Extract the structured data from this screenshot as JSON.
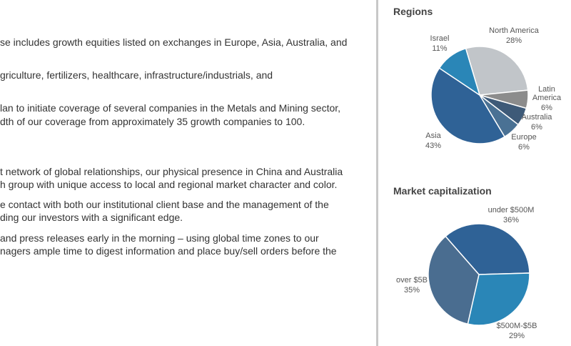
{
  "left_text": {
    "lines": [
      "se includes growth equities listed on exchanges in Europe, Asia, Australia, and",
      "griculture, fertilizers, healthcare, infrastructure/industrials, and",
      "lan to initiate coverage of several companies in the Metals and Mining sector,",
      "dth of our coverage from approximately 35 growth companies to 100.",
      "t network of global relationships, our physical presence in China and Australia",
      "h group with unique access to local and regional market character and color.",
      "e contact with both our institutional client base and the management of the",
      "ding our investors with a significant edge.",
      "and press releases early in the morning – using global time zones to our",
      "nagers ample time to digest information and place buy/sell orders before the"
    ]
  },
  "chart_data": [
    {
      "type": "pie",
      "title": "Regions",
      "slices": [
        {
          "label": "North America",
          "value": 28,
          "percent_label": "28%",
          "color": "#c1c5c9"
        },
        {
          "label": "Latin America",
          "value": 6,
          "percent_label": "6%",
          "color": "#8c8c8c"
        },
        {
          "label": "Australia",
          "value": 6,
          "percent_label": "6%",
          "color": "#3e5a78"
        },
        {
          "label": "Europe",
          "value": 6,
          "percent_label": "6%",
          "color": "#4a7194"
        },
        {
          "label": "Asia",
          "value": 43,
          "percent_label": "43%",
          "color": "#2f6296"
        },
        {
          "label": "Israel",
          "value": 11,
          "percent_label": "11%",
          "color": "#2a86b7"
        }
      ]
    },
    {
      "type": "pie",
      "title": "Market capitalization",
      "slices": [
        {
          "label": "under $500M",
          "value": 36,
          "percent_label": "36%",
          "color": "#2f6296"
        },
        {
          "label": "$500M-$5B",
          "value": 29,
          "percent_label": "29%",
          "color": "#2a86b7"
        },
        {
          "label": "over $5B",
          "value": 35,
          "percent_label": "35%",
          "color": "#4a6d90"
        }
      ]
    }
  ]
}
